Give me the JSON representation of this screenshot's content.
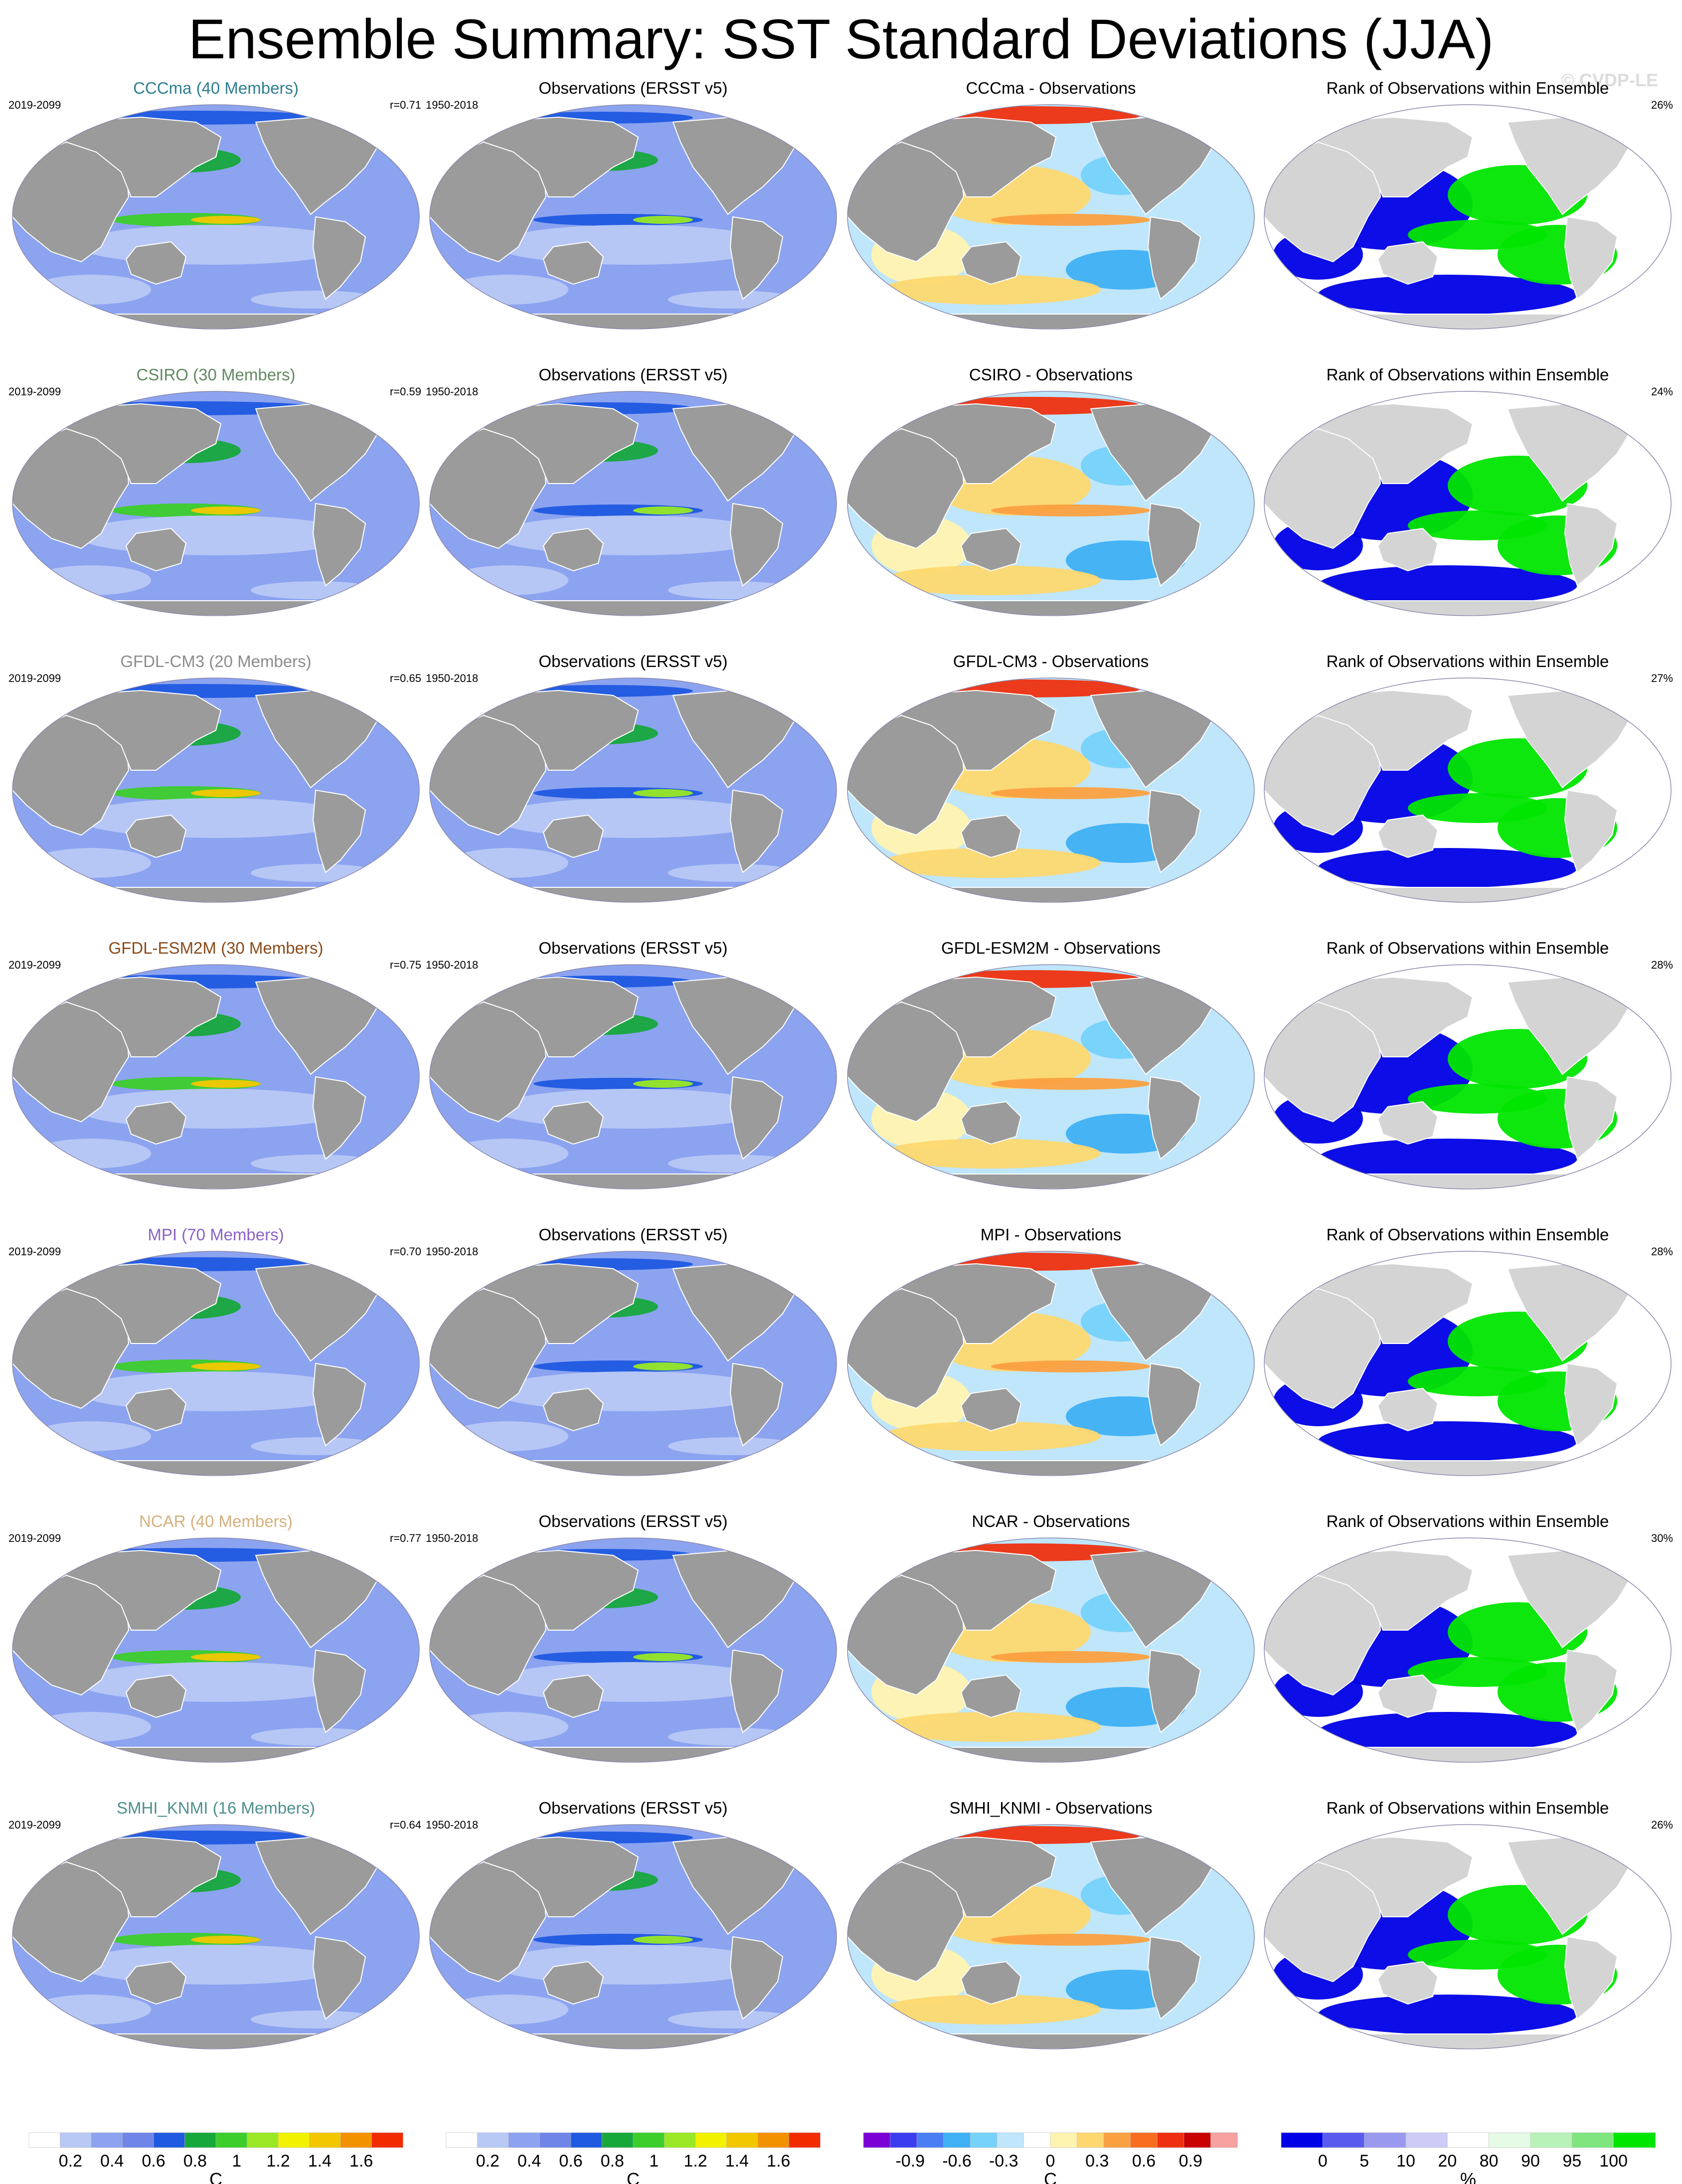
{
  "title": "Ensemble Summary: SST Standard Deviations (JJA)",
  "watermark": "© CVDP-LE",
  "colors": {
    "land": "#9b9b9b",
    "land_light": "#d4d4d4",
    "std_scale": [
      "#ffffff",
      "#b8c9f6",
      "#8ca3f0",
      "#6f86e8",
      "#1f5ae0",
      "#17a83c",
      "#3dce2c",
      "#9ae825",
      "#f2f200",
      "#f3c700",
      "#f39200",
      "#f32b00"
    ],
    "diff_scale": [
      "#7a00d6",
      "#3c3cf0",
      "#4a7ef4",
      "#3fb0f4",
      "#76d2fa",
      "#bfe6fb",
      "#ffffff",
      "#fff3b0",
      "#fdd870",
      "#fba040",
      "#f86d20",
      "#ee3010",
      "#c80000",
      "#f6a0a0"
    ],
    "rank_scale": [
      "#0000e6",
      "#5a5aee",
      "#9999f0",
      "#ccccf6",
      "#ffffff",
      "#e5fbe5",
      "#b8f2b8",
      "#7fe67f",
      "#00e600"
    ]
  },
  "rows": [
    {
      "model": {
        "title": "CCCma (40 Members)",
        "color": "#2f7e90",
        "period": "2019-2099",
        "r": "r=0.71"
      },
      "obs": {
        "title": "Observations (ERSST v5)",
        "period": "1950-2018"
      },
      "diff": {
        "title": "CCCma - Observations"
      },
      "rank": {
        "title": "Rank of Observations within Ensemble",
        "percent": "26%"
      }
    },
    {
      "model": {
        "title": "CSIRO (30 Members)",
        "color": "#5f8a5f",
        "period": "2019-2099",
        "r": "r=0.59"
      },
      "obs": {
        "title": "Observations (ERSST v5)",
        "period": "1950-2018"
      },
      "diff": {
        "title": "CSIRO - Observations"
      },
      "rank": {
        "title": "Rank of Observations within Ensemble",
        "percent": "24%"
      }
    },
    {
      "model": {
        "title": "GFDL-CM3 (20 Members)",
        "color": "#8c8c8c",
        "period": "2019-2099",
        "r": "r=0.65"
      },
      "obs": {
        "title": "Observations (ERSST v5)",
        "period": "1950-2018"
      },
      "diff": {
        "title": "GFDL-CM3 - Observations"
      },
      "rank": {
        "title": "Rank of Observations within Ensemble",
        "percent": "27%"
      }
    },
    {
      "model": {
        "title": "GFDL-ESM2M (30 Members)",
        "color": "#8a4a1a",
        "period": "2019-2099",
        "r": "r=0.75"
      },
      "obs": {
        "title": "Observations (ERSST v5)",
        "period": "1950-2018"
      },
      "diff": {
        "title": "GFDL-ESM2M - Observations"
      },
      "rank": {
        "title": "Rank of Observations within Ensemble",
        "percent": "28%"
      }
    },
    {
      "model": {
        "title": "MPI (70 Members)",
        "color": "#8a63c6",
        "period": "2019-2099",
        "r": "r=0.70"
      },
      "obs": {
        "title": "Observations (ERSST v5)",
        "period": "1950-2018"
      },
      "diff": {
        "title": "MPI - Observations"
      },
      "rank": {
        "title": "Rank of Observations within Ensemble",
        "percent": "28%"
      }
    },
    {
      "model": {
        "title": "NCAR (40 Members)",
        "color": "#d6b07e",
        "period": "2019-2099",
        "r": "r=0.77"
      },
      "obs": {
        "title": "Observations (ERSST v5)",
        "period": "1950-2018"
      },
      "diff": {
        "title": "NCAR - Observations"
      },
      "rank": {
        "title": "Rank of Observations within Ensemble",
        "percent": "30%"
      }
    },
    {
      "model": {
        "title": "SMHI_KNMI (16 Members)",
        "color": "#4f8f8f",
        "period": "2019-2099",
        "r": "r=0.64"
      },
      "obs": {
        "title": "Observations (ERSST v5)",
        "period": "1950-2018"
      },
      "diff": {
        "title": "SMHI_KNMI - Observations"
      },
      "rank": {
        "title": "Rank of Observations within Ensemble",
        "percent": "26%"
      }
    }
  ],
  "colorbars": [
    {
      "scale": "std_scale",
      "ticks": [
        "0.2",
        "0.4",
        "0.6",
        "0.8",
        "1",
        "1.2",
        "1.4",
        "1.6"
      ],
      "unit": "C"
    },
    {
      "scale": "std_scale",
      "ticks": [
        "0.2",
        "0.4",
        "0.6",
        "0.8",
        "1",
        "1.2",
        "1.4",
        "1.6"
      ],
      "unit": "C"
    },
    {
      "scale": "diff_scale",
      "ticks": [
        "-0.9",
        "-0.6",
        "-0.3",
        "0",
        "0.3",
        "0.6",
        "0.9"
      ],
      "unit": "C"
    },
    {
      "scale": "rank_scale",
      "ticks": [
        "0",
        "5",
        "10",
        "20",
        "80",
        "90",
        "95",
        "100"
      ],
      "unit": "%"
    }
  ]
}
